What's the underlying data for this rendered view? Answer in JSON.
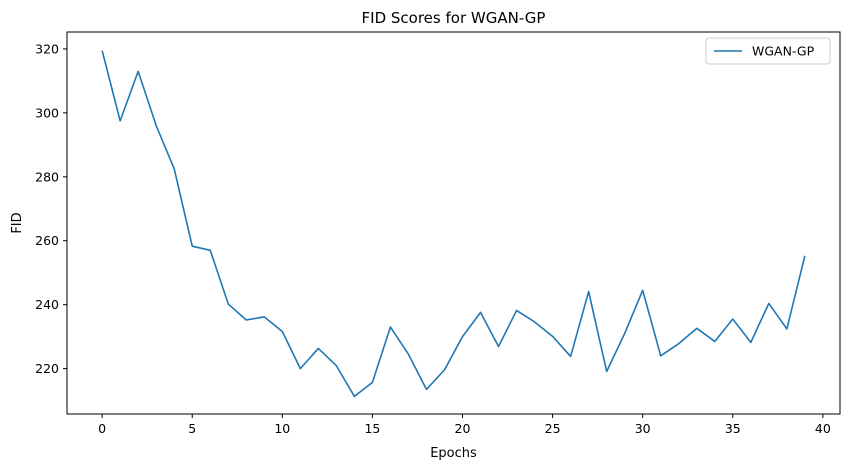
{
  "chart_data": {
    "type": "line",
    "title": "FID Scores for WGAN-GP",
    "xlabel": "Epochs",
    "ylabel": "FID",
    "xlim": [
      -1.95,
      40.95
    ],
    "ylim": [
      205.8,
      325.3
    ],
    "xticks": [
      0,
      5,
      10,
      15,
      20,
      25,
      30,
      35,
      40
    ],
    "yticks": [
      220,
      240,
      260,
      280,
      300,
      320
    ],
    "grid": false,
    "legend_position": "top-right",
    "series": [
      {
        "name": "WGAN-GP",
        "color": "#1f77b4",
        "x": [
          0,
          1,
          2,
          3,
          4,
          5,
          6,
          7,
          8,
          9,
          10,
          11,
          12,
          13,
          14,
          15,
          16,
          17,
          18,
          19,
          20,
          21,
          22,
          23,
          24,
          25,
          26,
          27,
          28,
          29,
          30,
          31,
          32,
          33,
          34,
          35,
          36,
          37,
          38,
          39
        ],
        "y": [
          319.5,
          297.5,
          313.0,
          296.0,
          282.5,
          258.3,
          257.0,
          240.2,
          235.2,
          236.2,
          231.6,
          220.0,
          226.3,
          220.9,
          211.3,
          215.7,
          233.0,
          224.5,
          213.5,
          219.6,
          230.0,
          237.6,
          226.9,
          238.2,
          234.6,
          230.1,
          223.8,
          244.1,
          219.1,
          231.0,
          244.5,
          224.0,
          227.8,
          232.6,
          228.5,
          235.5,
          228.2,
          240.4,
          232.4,
          255.3
        ]
      }
    ]
  }
}
